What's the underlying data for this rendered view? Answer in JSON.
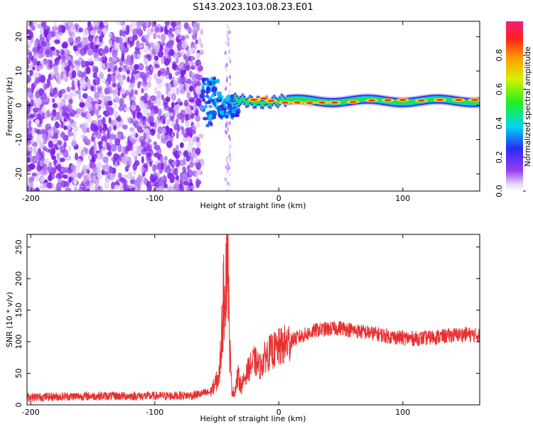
{
  "title": "S143.2023.103.08.23.E01",
  "chart_data": [
    {
      "type": "heatmap",
      "xlabel": "Height of straight line (km)",
      "ylabel": "Frequency (Hz)",
      "xlim": [
        -203,
        162
      ],
      "ylim": [
        -25,
        24.5
      ],
      "x_ticks": [
        -200,
        -100,
        0,
        100
      ],
      "x_tick_labels": [
        "-200",
        "-100",
        "0",
        "100"
      ],
      "y_ticks": [
        -20,
        -10,
        0,
        10,
        20
      ],
      "y_tick_labels": [
        "-20",
        "-10",
        "0",
        "10",
        "20"
      ],
      "colorbar": {
        "label": "Normalized spectral amplitude",
        "range": [
          0,
          1
        ],
        "ticks": [
          0,
          0.2,
          0.4,
          0.6,
          0.8
        ],
        "tick_labels": [
          "0.0",
          "0.2",
          "0.4",
          "0.6",
          "0.8"
        ],
        "colormap": "rainbow (purple-blue-cyan-green-yellow-red-magenta)"
      },
      "grid": false
    },
    {
      "type": "line",
      "xlabel": "Height of straight line (km)",
      "ylabel": "SNR (10 * v/v)",
      "xlim": [
        -203,
        162
      ],
      "ylim": [
        0,
        270
      ],
      "x_ticks": [
        -200,
        -100,
        0,
        100
      ],
      "x_tick_labels": [
        "-200",
        "-100",
        "0",
        "100"
      ],
      "y_ticks": [
        0,
        50,
        100,
        150,
        200,
        250
      ],
      "y_tick_labels": [
        "0",
        "50",
        "100",
        "150",
        "200",
        "250"
      ],
      "color": "#e83030",
      "grid": false,
      "series": [
        {
          "x": [
            -203,
            -180,
            -150,
            -120,
            -90,
            -70,
            -55,
            -48,
            -45,
            -43,
            -41,
            -40,
            -38,
            -36,
            -33,
            -30,
            -25,
            -20,
            -15,
            -10,
            -5,
            0,
            5,
            10,
            20,
            30,
            40,
            50,
            60,
            70,
            80,
            90,
            100,
            110,
            120,
            130,
            140,
            150,
            162
          ],
          "y": [
            12,
            13,
            14,
            14,
            14,
            15,
            20,
            45,
            150,
            205,
            265,
            110,
            25,
            18,
            45,
            30,
            55,
            70,
            60,
            80,
            85,
            90,
            95,
            102,
            110,
            118,
            120,
            122,
            118,
            115,
            112,
            108,
            106,
            105,
            106,
            108,
            110,
            112,
            110
          ]
        }
      ]
    }
  ]
}
